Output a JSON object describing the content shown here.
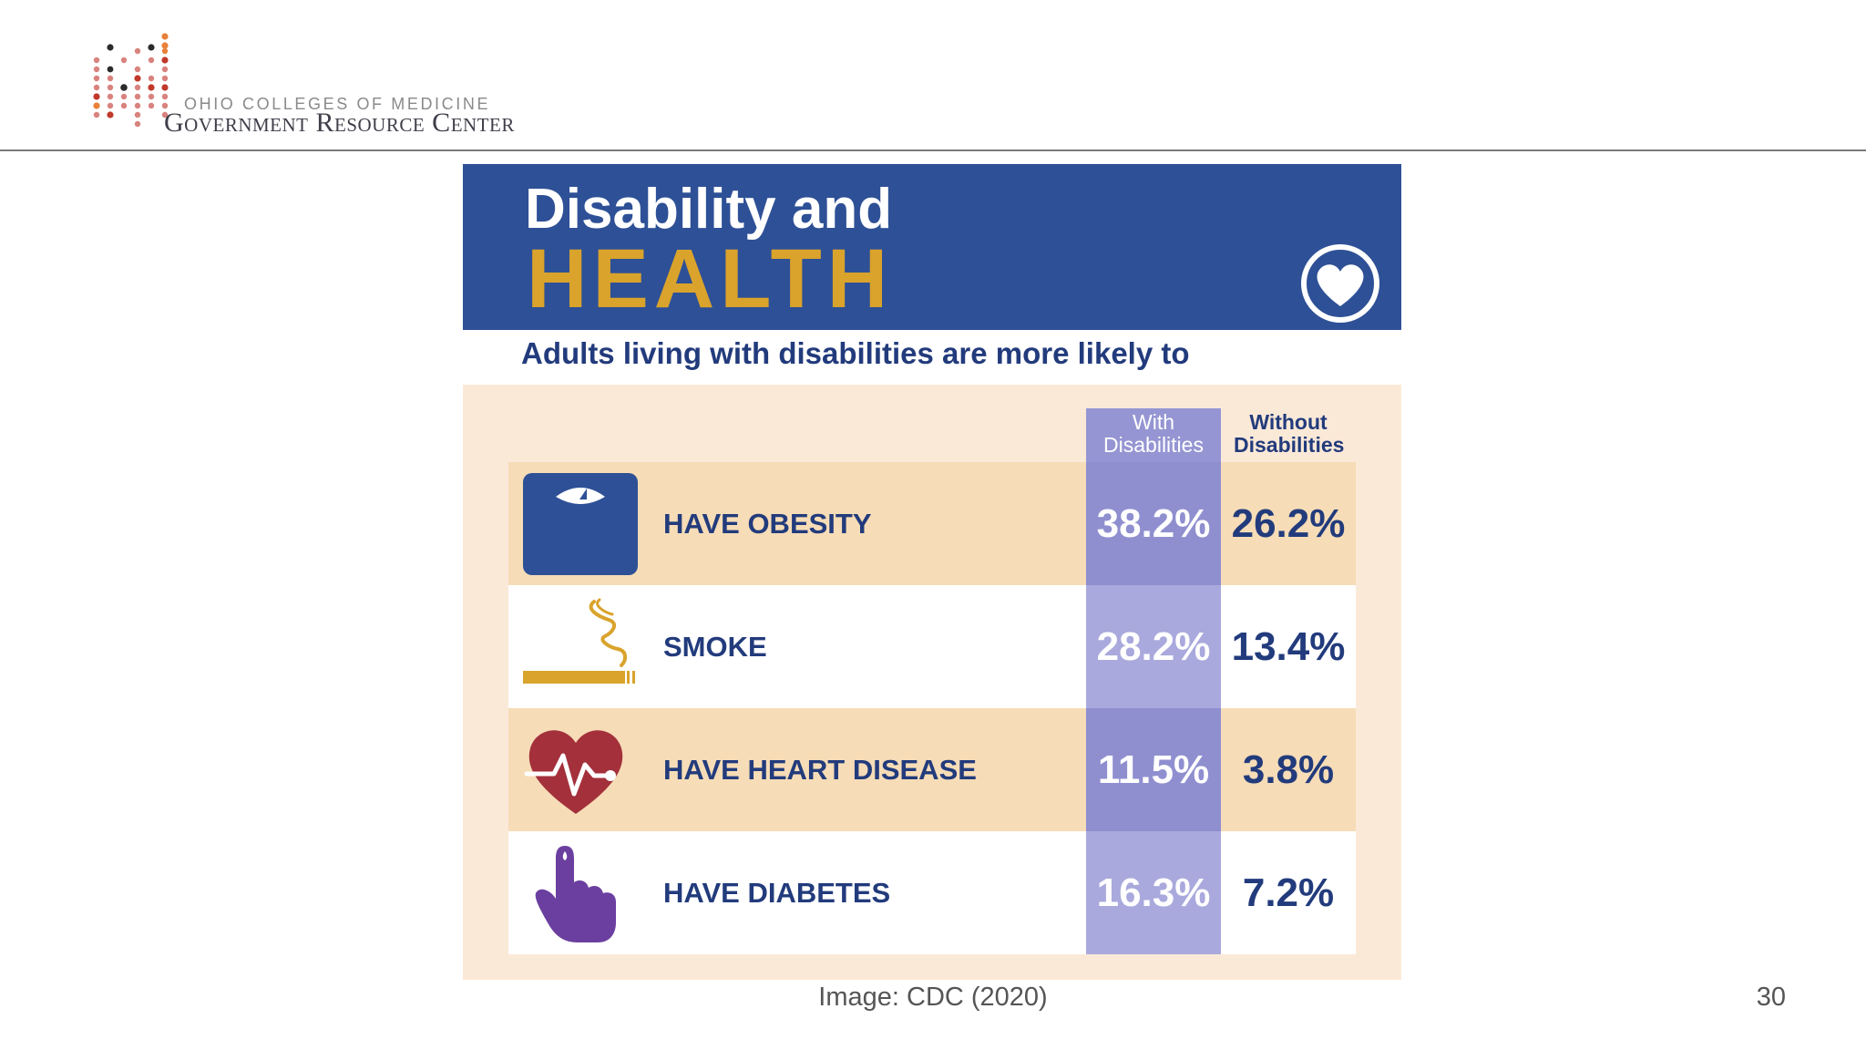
{
  "logo": {
    "line_small": "OHIO COLLEGES OF MEDICINE",
    "line_big": "Government Resource Center",
    "dot_colors": [
      "#c0392b",
      "#e07b39",
      "#d4a5a5",
      "#333333"
    ]
  },
  "infographic": {
    "title_line1": "Disability and",
    "title_line2": "HEALTH",
    "subtitle": "Adults living with disabilities are more likely to",
    "column_with": "With Disabilities",
    "column_without": "Without Disabilities",
    "colors": {
      "banner": "#2e5096",
      "title_accent": "#d9a32c",
      "with_column": "#8f8fd0",
      "text": "#223b7c"
    },
    "rows": [
      {
        "label": "HAVE OBESITY",
        "with": "38.2%",
        "without": "26.2%",
        "icon": "scale-icon"
      },
      {
        "label": "SMOKE",
        "with": "28.2%",
        "without": "13.4%",
        "icon": "cigarette-icon"
      },
      {
        "label": "HAVE HEART DISEASE",
        "with": "11.5%",
        "without": "3.8%",
        "icon": "heart-pulse-icon"
      },
      {
        "label": "HAVE DIABETES",
        "with": "16.3%",
        "without": "7.2%",
        "icon": "finger-prick-icon"
      }
    ]
  },
  "caption": "Image: CDC (2020)",
  "page_number": "30"
}
